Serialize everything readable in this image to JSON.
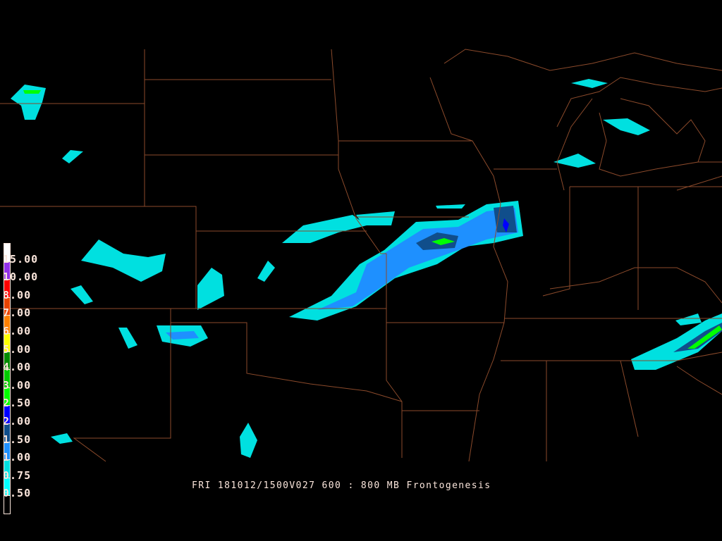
{
  "title": "FRI 181012/1500V027 600 : 800 MB Frontogenesis",
  "legend": {
    "labels": [
      "15.00",
      "10.00",
      "8.00",
      "7.00",
      "6.00",
      "5.00",
      "4.00",
      "3.00",
      "2.50",
      "2.00",
      "1.50",
      "1.00",
      "0.75",
      "0.50"
    ],
    "colors": [
      "#ffffff",
      "#9030e8",
      "#ff0000",
      "#e84400",
      "#ff8000",
      "#ffff00",
      "#008a00",
      "#00c800",
      "#00ff00",
      "#0000ff",
      "#104e8b",
      "#1e90ff",
      "#00e0e0",
      "#00ffff",
      "#000000"
    ]
  },
  "colors": {
    "background": "#000000",
    "boundaries": "#8b4a2b",
    "text": "#fbe6dc"
  }
}
